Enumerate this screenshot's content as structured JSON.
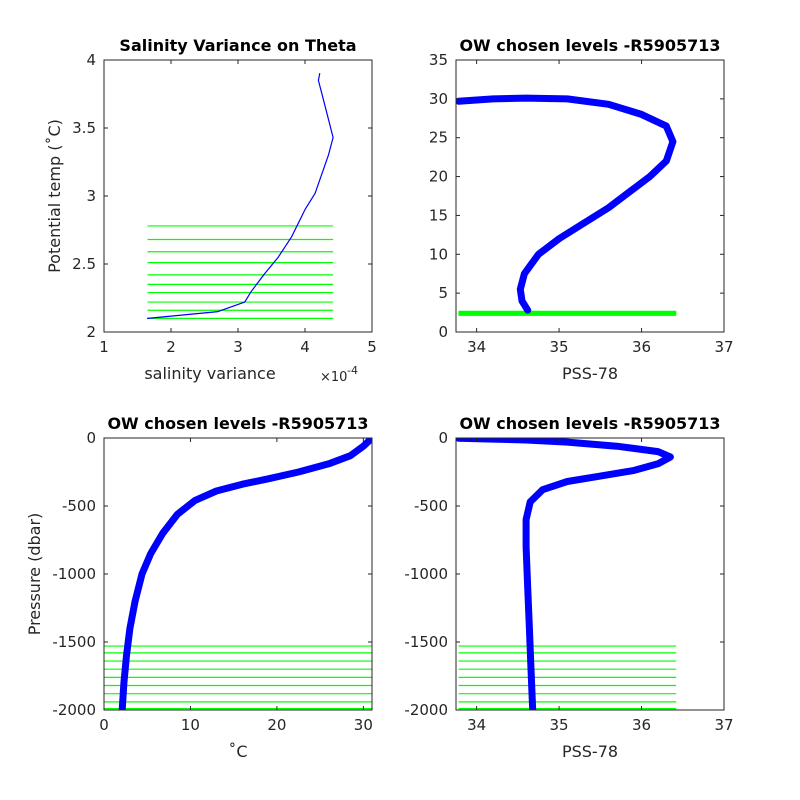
{
  "colors": {
    "profile": "#0000ff",
    "levels": "#00ff00",
    "axes": "#262626",
    "background": "#ffffff"
  },
  "chart_data": [
    {
      "id": "tl",
      "type": "line",
      "title": "Salinity Variance on Theta",
      "xlabel": "salinity variance",
      "x_exponent_label": "×10",
      "x_exponent_power": "-4",
      "ylabel": "Potential temp (˚C)",
      "xlim": [
        1,
        5
      ],
      "ylim": [
        2,
        4
      ],
      "xticks": [
        1,
        2,
        3,
        4,
        5
      ],
      "xticklabels": [
        "1",
        "2",
        "3",
        "4",
        "5"
      ],
      "yticks": [
        2,
        2.5,
        3,
        3.5,
        4
      ],
      "yticklabels": [
        "2",
        "2.5",
        "3",
        "3.5",
        "4"
      ],
      "series": [
        {
          "x": [
            1.65,
            2.7,
            3.1,
            3.2,
            3.4,
            3.6,
            3.8,
            4.0,
            4.15,
            4.35,
            4.42,
            4.3,
            4.2,
            4.22
          ],
          "y": [
            2.1,
            2.15,
            2.22,
            2.3,
            2.43,
            2.55,
            2.7,
            2.9,
            3.02,
            3.3,
            3.43,
            3.66,
            3.85,
            3.9
          ]
        }
      ],
      "hlines": {
        "y": [
          2.1,
          2.16,
          2.22,
          2.29,
          2.35,
          2.42,
          2.51,
          2.59,
          2.68,
          2.78
        ],
        "x_range": [
          1.65,
          4.42
        ]
      }
    },
    {
      "id": "tr",
      "type": "line",
      "title": "OW chosen levels -R5905713",
      "xlabel": "PSS-78",
      "ylabel": "",
      "xlim": [
        33.75,
        37
      ],
      "ylim": [
        0,
        35
      ],
      "xticks": [
        34,
        35,
        36,
        37
      ],
      "xticklabels": [
        "34",
        "35",
        "36",
        "37"
      ],
      "yticks": [
        0,
        5,
        10,
        15,
        20,
        25,
        30,
        35
      ],
      "yticklabels": [
        "0",
        "5",
        "10",
        "15",
        "20",
        "25",
        "30",
        "35"
      ],
      "series": [
        {
          "x": [
            34.62,
            34.55,
            34.53,
            34.58,
            34.75,
            35.0,
            35.3,
            35.6,
            35.85,
            36.1,
            36.3,
            36.38,
            36.3,
            36.0,
            35.6,
            35.1,
            34.6,
            34.2,
            33.78
          ],
          "y": [
            2.8,
            4.0,
            5.5,
            7.5,
            10.0,
            12.0,
            14.0,
            16.0,
            18.0,
            20.0,
            22.0,
            24.5,
            26.5,
            28.0,
            29.3,
            30.0,
            30.1,
            30.0,
            29.7
          ]
        }
      ],
      "hlines": {
        "y": [
          2.2,
          2.3,
          2.4,
          2.5,
          2.6
        ],
        "x_range": [
          33.78,
          36.42
        ]
      }
    },
    {
      "id": "bl",
      "type": "line",
      "title": "OW chosen levels -R5905713",
      "xlabel": "˚C",
      "ylabel": "Pressure (dbar)",
      "xlim": [
        0,
        31
      ],
      "ylim": [
        -2000,
        0
      ],
      "xticks": [
        0,
        10,
        20,
        30
      ],
      "xticklabels": [
        "0",
        "10",
        "20",
        "30"
      ],
      "yticks": [
        -2000,
        -1500,
        -1000,
        -500,
        0
      ],
      "yticklabels": [
        "-2000",
        "-1500",
        "-1000",
        "-500",
        "0"
      ],
      "series": [
        {
          "x": [
            2.1,
            2.3,
            2.6,
            3.0,
            3.6,
            4.4,
            5.4,
            6.8,
            8.5,
            10.5,
            13.0,
            16.0,
            19.0,
            22.5,
            26.0,
            28.5,
            30.0,
            31.0
          ],
          "y": [
            -2000,
            -1800,
            -1600,
            -1400,
            -1200,
            -1000,
            -850,
            -700,
            -560,
            -460,
            -390,
            -340,
            -300,
            -250,
            -190,
            -130,
            -60,
            0
          ]
        }
      ],
      "hlines": {
        "y": [
          -1530,
          -1580,
          -1640,
          -1700,
          -1760,
          -1820,
          -1880,
          -1940,
          -1990
        ],
        "x_range": [
          0,
          31
        ]
      }
    },
    {
      "id": "br",
      "type": "line",
      "title": "OW chosen levels -R5905713",
      "xlabel": "PSS-78",
      "ylabel": "",
      "xlim": [
        33.75,
        37
      ],
      "ylim": [
        -2000,
        0
      ],
      "xticks": [
        34,
        35,
        36,
        37
      ],
      "xticklabels": [
        "34",
        "35",
        "36",
        "37"
      ],
      "yticks": [
        -2000,
        -1500,
        -1000,
        -500,
        0
      ],
      "yticklabels": [
        "-2000",
        "-1500",
        "-1000",
        "-500",
        "0"
      ],
      "series": [
        {
          "x": [
            34.68,
            34.66,
            34.64,
            34.62,
            34.6,
            34.6,
            34.65,
            34.8,
            35.1,
            35.5,
            35.9,
            36.2,
            36.35,
            36.2,
            35.7,
            35.1,
            34.6,
            34.2,
            33.78
          ],
          "y": [
            -2000,
            -1700,
            -1400,
            -1100,
            -800,
            -600,
            -470,
            -380,
            -320,
            -280,
            -240,
            -190,
            -140,
            -100,
            -60,
            -30,
            -15,
            -8,
            -2
          ]
        }
      ],
      "hlines": {
        "y": [
          -1530,
          -1580,
          -1640,
          -1700,
          -1760,
          -1820,
          -1880,
          -1940,
          -1990
        ],
        "x_range": [
          33.78,
          36.42
        ]
      }
    }
  ]
}
